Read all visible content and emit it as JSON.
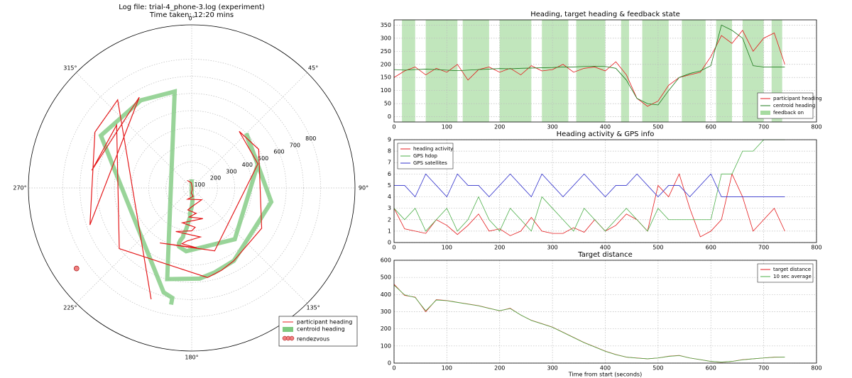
{
  "chart_data": [
    {
      "type": "polar",
      "title": "Log file: trial-4_phone-3.log (experiment)",
      "subtitle": "Time taken: 12:20 mins",
      "r": [
        0,
        20,
        40,
        60,
        80,
        100,
        120,
        140,
        160,
        180,
        200,
        220,
        240,
        260,
        280,
        300,
        320,
        340,
        360,
        380,
        400,
        420,
        440,
        460,
        480,
        500,
        520,
        540,
        560,
        580,
        600,
        620,
        640,
        660,
        680,
        700,
        720,
        740
      ],
      "rlim": [
        50,
        1000
      ],
      "rticks": [
        100,
        200,
        300,
        400,
        500,
        600,
        700,
        800
      ],
      "thetaticks": [
        {
          "value": 0,
          "label": "0°"
        },
        {
          "value": 45,
          "label": "45°"
        },
        {
          "value": 90,
          "label": "90°"
        },
        {
          "value": 135,
          "label": "135°"
        },
        {
          "value": 180,
          "label": "180°"
        },
        {
          "value": 225,
          "label": "225°"
        },
        {
          "value": 270,
          "label": "270°"
        },
        {
          "value": 315,
          "label": "315°"
        }
      ],
      "series": [
        {
          "name": "participant heading",
          "color": "#e41a1c",
          "values": [
            150,
            175,
            190,
            160,
            185,
            170,
            200,
            140,
            180,
            190,
            170,
            185,
            160,
            195,
            175,
            180,
            200,
            170,
            185,
            190,
            175,
            210,
            160,
            70,
            40,
            60,
            120,
            150,
            160,
            170,
            230,
            310,
            280,
            330,
            250,
            300,
            320,
            200
          ]
        },
        {
          "name": "centroid heading",
          "color": "#7fc97f",
          "values": [
            180,
            178,
            180,
            182,
            180,
            178,
            176,
            178,
            180,
            182,
            184,
            183,
            185,
            186,
            187,
            188,
            190,
            190,
            192,
            193,
            192,
            185,
            140,
            70,
            50,
            45,
            100,
            150,
            165,
            175,
            195,
            350,
            330,
            300,
            195,
            190,
            190,
            190
          ]
        }
      ],
      "points": {
        "name": "rendezvous",
        "color": "#f08080",
        "theta": 235,
        "r": 868
      }
    },
    {
      "type": "line",
      "title": "Heading, target heading & feedback state",
      "x": [
        0,
        20,
        40,
        60,
        80,
        100,
        120,
        140,
        160,
        180,
        200,
        220,
        240,
        260,
        280,
        300,
        320,
        340,
        360,
        380,
        400,
        420,
        440,
        460,
        480,
        500,
        520,
        540,
        560,
        580,
        600,
        620,
        640,
        660,
        680,
        700,
        720,
        740
      ],
      "xlim": [
        0,
        800
      ],
      "xticks": [
        0,
        100,
        200,
        300,
        400,
        500,
        600,
        700,
        800
      ],
      "ylim": [
        -20,
        370
      ],
      "yticks": [
        0,
        50,
        100,
        150,
        200,
        250,
        300,
        350
      ],
      "grid": true,
      "legend": "lower right",
      "series": [
        {
          "name": "participant heading",
          "color": "#e41a1c",
          "values": [
            150,
            175,
            190,
            160,
            185,
            170,
            200,
            140,
            180,
            190,
            170,
            185,
            160,
            195,
            175,
            180,
            200,
            170,
            185,
            190,
            175,
            210,
            160,
            70,
            40,
            60,
            120,
            150,
            160,
            170,
            230,
            310,
            280,
            330,
            250,
            300,
            320,
            200
          ]
        },
        {
          "name": "centroid heading",
          "color": "#1b7a1b",
          "values": [
            180,
            178,
            180,
            182,
            180,
            178,
            176,
            178,
            180,
            182,
            184,
            183,
            185,
            186,
            187,
            188,
            190,
            190,
            192,
            193,
            192,
            185,
            140,
            70,
            50,
            45,
            100,
            150,
            165,
            175,
            195,
            350,
            330,
            300,
            195,
            190,
            190,
            190
          ]
        },
        {
          "name": "feedback on",
          "color": "#a6dba0",
          "spans": [
            [
              15,
              40
            ],
            [
              60,
              120
            ],
            [
              130,
              180
            ],
            [
              200,
              260
            ],
            [
              280,
              330
            ],
            [
              345,
              400
            ],
            [
              430,
              445
            ],
            [
              470,
              520
            ],
            [
              545,
              590
            ],
            [
              610,
              640
            ],
            [
              660,
              700
            ],
            [
              715,
              735
            ]
          ]
        }
      ]
    },
    {
      "type": "line",
      "title": "Heading activity & GPS info",
      "x": [
        0,
        20,
        40,
        60,
        80,
        100,
        120,
        140,
        160,
        180,
        200,
        220,
        240,
        260,
        280,
        300,
        320,
        340,
        360,
        380,
        400,
        420,
        440,
        460,
        480,
        500,
        520,
        540,
        560,
        580,
        600,
        620,
        640,
        660,
        680,
        700,
        720,
        740
      ],
      "xlim": [
        0,
        800
      ],
      "xticks": [
        0,
        100,
        200,
        300,
        400,
        500,
        600,
        700,
        800
      ],
      "ylim": [
        0,
        9
      ],
      "yticks": [
        0,
        1,
        2,
        3,
        4,
        5,
        6,
        7,
        8,
        9
      ],
      "grid": true,
      "legend": "upper left",
      "series": [
        {
          "name": "heading activity",
          "color": "#e41a1c",
          "values": [
            3,
            1.2,
            1,
            0.8,
            2,
            1.5,
            0.7,
            1.5,
            2.5,
            1,
            1.2,
            0.6,
            1,
            2.2,
            1,
            0.8,
            0.8,
            1.3,
            0.9,
            2,
            1,
            1.5,
            2.5,
            2,
            1,
            5,
            4,
            6,
            3,
            0.5,
            1,
            2,
            6,
            4,
            1,
            2,
            3,
            1
          ]
        },
        {
          "name": "GPS hdop",
          "color": "#4daf4a",
          "values": [
            3,
            2,
            3,
            1,
            2,
            3,
            1,
            2,
            4,
            2,
            1,
            3,
            2,
            1,
            4,
            3,
            2,
            1,
            3,
            2,
            1,
            2,
            3,
            2,
            1,
            3,
            2,
            2,
            2,
            2,
            2,
            6,
            6,
            8,
            8,
            9,
            9,
            9
          ]
        },
        {
          "name": "GPS satellites",
          "color": "#3333cc",
          "values": [
            5,
            5,
            4,
            6,
            5,
            4,
            6,
            5,
            5,
            4,
            5,
            6,
            5,
            4,
            6,
            5,
            4,
            5,
            6,
            5,
            4,
            5,
            5,
            6,
            5,
            4,
            5,
            5,
            4,
            5,
            6,
            4,
            4,
            4,
            4,
            4,
            4,
            4
          ]
        }
      ]
    },
    {
      "type": "line",
      "title": "Target distance",
      "xlabel": "Time from start (seconds)",
      "x": [
        0,
        20,
        40,
        60,
        80,
        100,
        120,
        140,
        160,
        180,
        200,
        220,
        240,
        260,
        280,
        300,
        320,
        340,
        360,
        380,
        400,
        420,
        440,
        460,
        480,
        500,
        520,
        540,
        560,
        580,
        600,
        620,
        640,
        660,
        680,
        700,
        720,
        740
      ],
      "xlim": [
        0,
        800
      ],
      "xticks": [
        0,
        100,
        200,
        300,
        400,
        500,
        600,
        700,
        800
      ],
      "ylim": [
        0,
        600
      ],
      "yticks": [
        0,
        100,
        200,
        300,
        400,
        500,
        600
      ],
      "grid": true,
      "legend": "upper right",
      "series": [
        {
          "name": "target distance",
          "color": "#e41a1c",
          "values": [
            460,
            395,
            385,
            300,
            370,
            365,
            355,
            345,
            335,
            320,
            305,
            320,
            280,
            250,
            230,
            210,
            180,
            150,
            120,
            95,
            70,
            50,
            35,
            30,
            25,
            30,
            40,
            45,
            30,
            20,
            10,
            5,
            10,
            20,
            25,
            30,
            35,
            35
          ]
        },
        {
          "name": "10 sec average",
          "color": "#4daf4a",
          "values": [
            455,
            398,
            383,
            305,
            368,
            364,
            354,
            344,
            334,
            319,
            306,
            318,
            281,
            249,
            229,
            209,
            179,
            149,
            119,
            94,
            69,
            49,
            35,
            29,
            25,
            30,
            39,
            44,
            30,
            20,
            10,
            6,
            10,
            19,
            25,
            30,
            34,
            35
          ]
        }
      ]
    }
  ]
}
